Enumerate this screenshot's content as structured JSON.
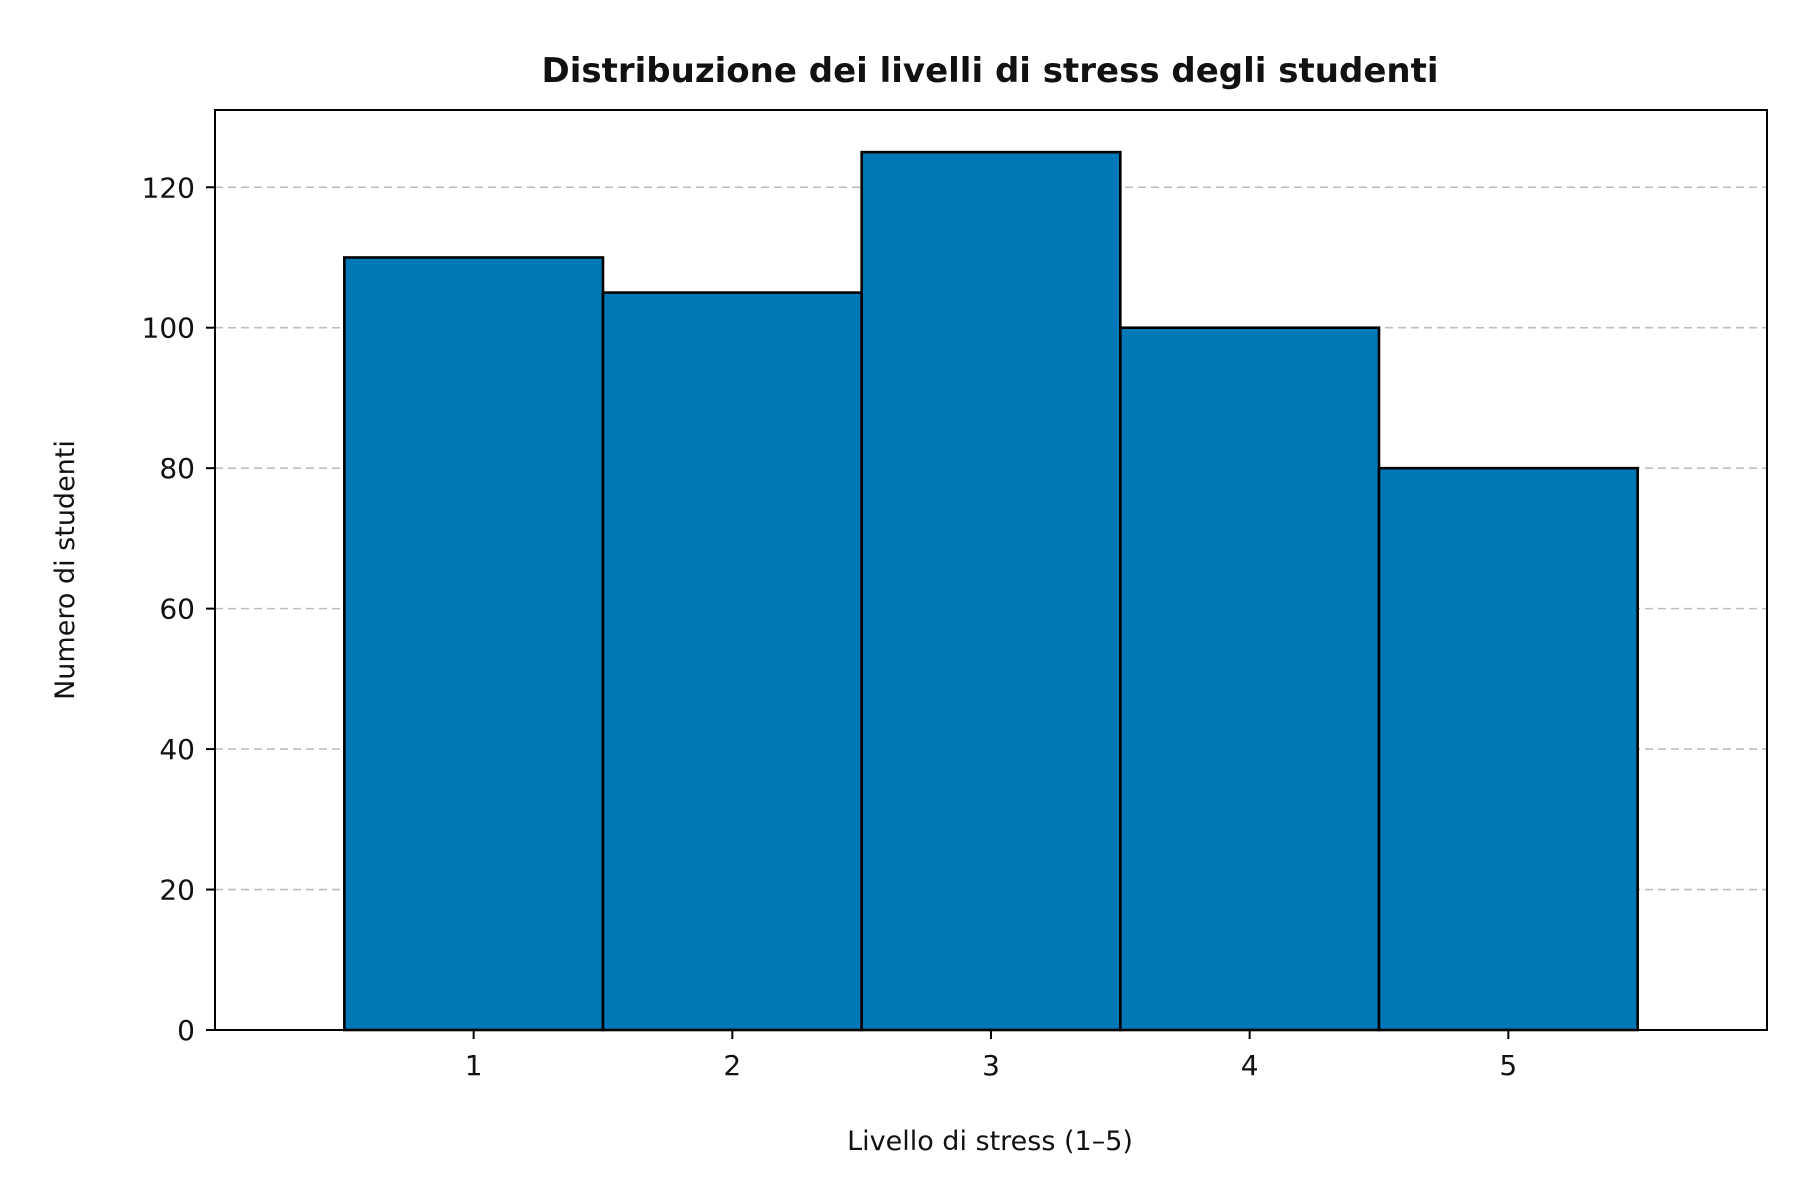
{
  "chart_data": {
    "type": "bar",
    "title": "Distribuzione dei livelli di stress degli studenti",
    "xlabel": "Livello di stress (1–5)",
    "ylabel": "Numero di studenti",
    "categories": [
      "1",
      "2",
      "3",
      "4",
      "5"
    ],
    "values": [
      110,
      105,
      125,
      100,
      80
    ],
    "xlim": [
      0,
      6
    ],
    "ylim": [
      0,
      131
    ],
    "yticks": [
      0,
      20,
      40,
      60,
      80,
      100,
      120
    ],
    "bar_width": 1,
    "grid": {
      "axis": "y",
      "style": "dashed"
    },
    "colors": {
      "bar": "#0077B6",
      "edge": "#000000",
      "grid": "#BDBDBD"
    }
  }
}
